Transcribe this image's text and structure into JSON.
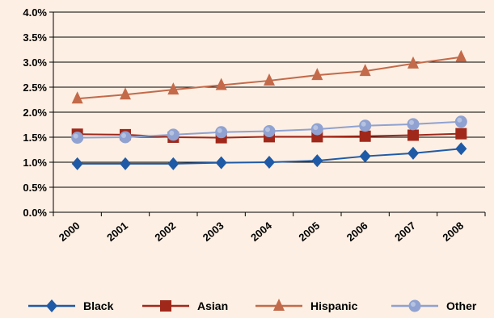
{
  "chart_data": {
    "type": "line",
    "categories": [
      "2000",
      "2001",
      "2002",
      "2003",
      "2004",
      "2005",
      "2006",
      "2007",
      "2008"
    ],
    "ylim": [
      0,
      4.0
    ],
    "yticks": [
      "0.0%",
      "0.5%",
      "1.0%",
      "1.5%",
      "2.0%",
      "2.5%",
      "3.0%",
      "3.5%",
      "4.0%"
    ],
    "grid": true,
    "legend_position": "bottom",
    "series": [
      {
        "name": "Black",
        "color": "#1f5aa6",
        "marker": "diamond",
        "values": [
          0.97,
          0.97,
          0.97,
          0.99,
          1.0,
          1.03,
          1.12,
          1.18,
          1.27
        ]
      },
      {
        "name": "Asian",
        "color": "#a0281a",
        "marker": "square",
        "values": [
          1.56,
          1.55,
          1.5,
          1.49,
          1.51,
          1.51,
          1.52,
          1.54,
          1.57
        ]
      },
      {
        "name": "Hispanic",
        "color": "#c36a4a",
        "marker": "triangle",
        "values": [
          2.27,
          2.35,
          2.45,
          2.54,
          2.63,
          2.74,
          2.82,
          2.97,
          3.1
        ]
      },
      {
        "name": "Other",
        "color": "#8fa2d1",
        "marker": "circle",
        "values": [
          1.49,
          1.5,
          1.55,
          1.6,
          1.62,
          1.66,
          1.73,
          1.76,
          1.81
        ]
      }
    ]
  }
}
